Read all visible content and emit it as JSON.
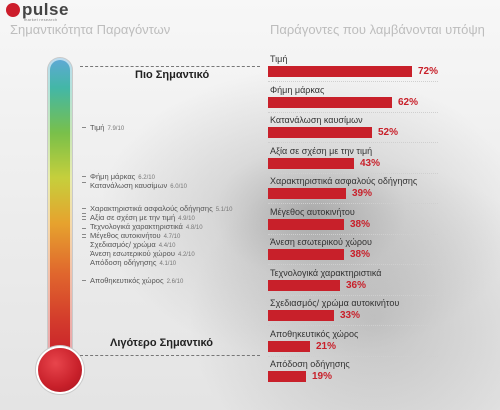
{
  "brand": {
    "name": "pulse",
    "tagline": "market research"
  },
  "headings": {
    "left": "Σημαντικότητα Παραγόντων",
    "right": "Παράγοντες που λαμβάνονται υπόψη"
  },
  "scale": {
    "top_label": "Πιο Σημαντικό",
    "bottom_label": "Λιγότερο Σημαντικό"
  },
  "colors": {
    "bar": "#c8202a",
    "accent": "#cc1d2b"
  },
  "chart_data": [
    {
      "type": "scatter",
      "title": "Σημαντικότητα Παραγόντων",
      "scale_max": 10,
      "items": [
        {
          "label": "Τιμή",
          "score_text": "7.9/10",
          "value": 7.9
        },
        {
          "label": "Φήμη μάρκας",
          "score_text": "6.2/10",
          "value": 6.2
        },
        {
          "label": "Κατανάλωση καυσίμων",
          "score_text": "6.0/10",
          "value": 6.0
        },
        {
          "label": "Χαρακτηριστικά ασφαλούς οδήγησης",
          "score_text": "5.1/10",
          "value": 5.1
        },
        {
          "label": "Αξία σε σχέση με την τιμή",
          "score_text": "4.9/10",
          "value": 4.9
        },
        {
          "label": "Τεχνολογικά χαρακτηριστικά",
          "score_text": "4.8/10",
          "value": 4.8
        },
        {
          "label": "Μέγεθος αυτοκινήτου",
          "score_text": "4.7/10",
          "value": 4.7
        },
        {
          "label": "Σχεδιασμός/ χρώμα",
          "score_text": "4.4/10",
          "value": 4.4
        },
        {
          "label": "Άνεση εσωτερικού χώρου",
          "score_text": "4.2/10",
          "value": 4.2
        },
        {
          "label": "Απόδοση οδήγησης",
          "score_text": "4.1/10",
          "value": 4.1
        },
        {
          "label": "Αποθηκευτικός χώρος",
          "score_text": "2.6/10",
          "value": 2.6
        }
      ]
    },
    {
      "type": "bar",
      "title": "Παράγοντες που λαμβάνονται υπόψη",
      "ylim": [
        0,
        100
      ],
      "categories": [
        "Τιμή",
        "Φήμη μάρκας",
        "Κατανάλωση καυσίμων",
        "Αξία σε σχέση με την τιμή",
        "Χαρακτηριστικά ασφαλούς οδήγησης",
        "Μέγεθος αυτοκινήτου",
        "Άνεση εσωτερικού χώρου",
        "Τεχνολογικά χαρακτηριστικά",
        "Σχεδιασμός/ χρώμα αυτοκινήτου",
        "Αποθηκευτικός χώρος",
        "Απόδοση οδήγησης"
      ],
      "values": [
        72,
        62,
        52,
        43,
        39,
        38,
        38,
        36,
        33,
        21,
        19
      ],
      "value_labels": [
        "72%",
        "62%",
        "52%",
        "43%",
        "39%",
        "38%",
        "38%",
        "36%",
        "33%",
        "21%",
        "19%"
      ]
    }
  ]
}
